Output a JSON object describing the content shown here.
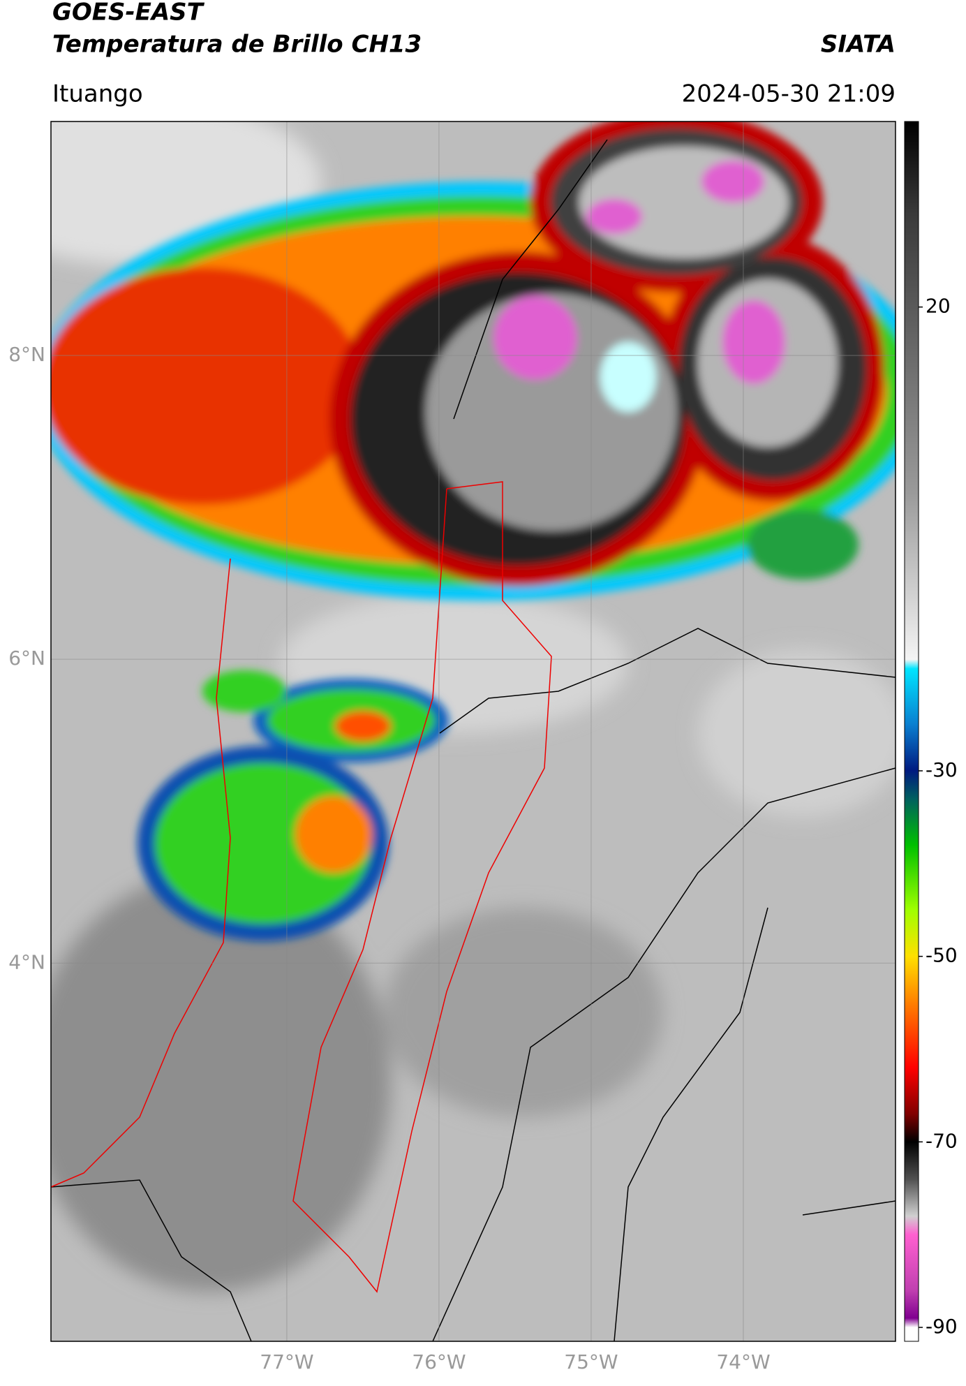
{
  "header": {
    "title": "GOES-EAST",
    "subtitle": "Temperatura de Brillo CH13",
    "brand": "SIATA",
    "location": "Ituango",
    "timestamp": "2024-05-30 21:09"
  },
  "map": {
    "type": "map",
    "xlim": [
      -78.55,
      -73.0
    ],
    "ylim": [
      1.51,
      9.54
    ],
    "xticks": [
      {
        "value": -77,
        "label": "77°W"
      },
      {
        "value": -76,
        "label": "76°W"
      },
      {
        "value": -75,
        "label": "75°W"
      },
      {
        "value": -74,
        "label": "74°W"
      }
    ],
    "yticks": [
      {
        "value": 8,
        "label": "8°N"
      },
      {
        "value": 6,
        "label": "6°N"
      },
      {
        "value": 4,
        "label": "4°N"
      }
    ],
    "grid": true
  },
  "colorbar": {
    "type": "colorbar",
    "lim": [
      -91.5,
      40
    ],
    "ticks": [
      20,
      -30,
      -50,
      -70,
      -90
    ],
    "colormap": [
      {
        "value": 40,
        "color": "#000000"
      },
      {
        "value": 30,
        "color": "#3a3a3a"
      },
      {
        "value": 20,
        "color": "#5a5a5a"
      },
      {
        "value": 0,
        "color": "#9a9a9a"
      },
      {
        "value": -18,
        "color": "#f4f4f4"
      },
      {
        "value": -19,
        "color": "#00e5ff"
      },
      {
        "value": -25,
        "color": "#0a7fd0"
      },
      {
        "value": -30,
        "color": "#001a80"
      },
      {
        "value": -33,
        "color": "#006060"
      },
      {
        "value": -38,
        "color": "#00c000"
      },
      {
        "value": -45,
        "color": "#a0ff00"
      },
      {
        "value": -50,
        "color": "#ffe000"
      },
      {
        "value": -55,
        "color": "#ff8000"
      },
      {
        "value": -62,
        "color": "#ff0000"
      },
      {
        "value": -67,
        "color": "#800000"
      },
      {
        "value": -70,
        "color": "#000000"
      },
      {
        "value": -74,
        "color": "#505050"
      },
      {
        "value": -78,
        "color": "#d0d0d0"
      },
      {
        "value": -80,
        "color": "#ff60d0"
      },
      {
        "value": -86,
        "color": "#c040b0"
      },
      {
        "value": -89,
        "color": "#800090"
      },
      {
        "value": -90,
        "color": "#ffffff"
      },
      {
        "value": -91.5,
        "color": "#ffffff"
      }
    ]
  }
}
